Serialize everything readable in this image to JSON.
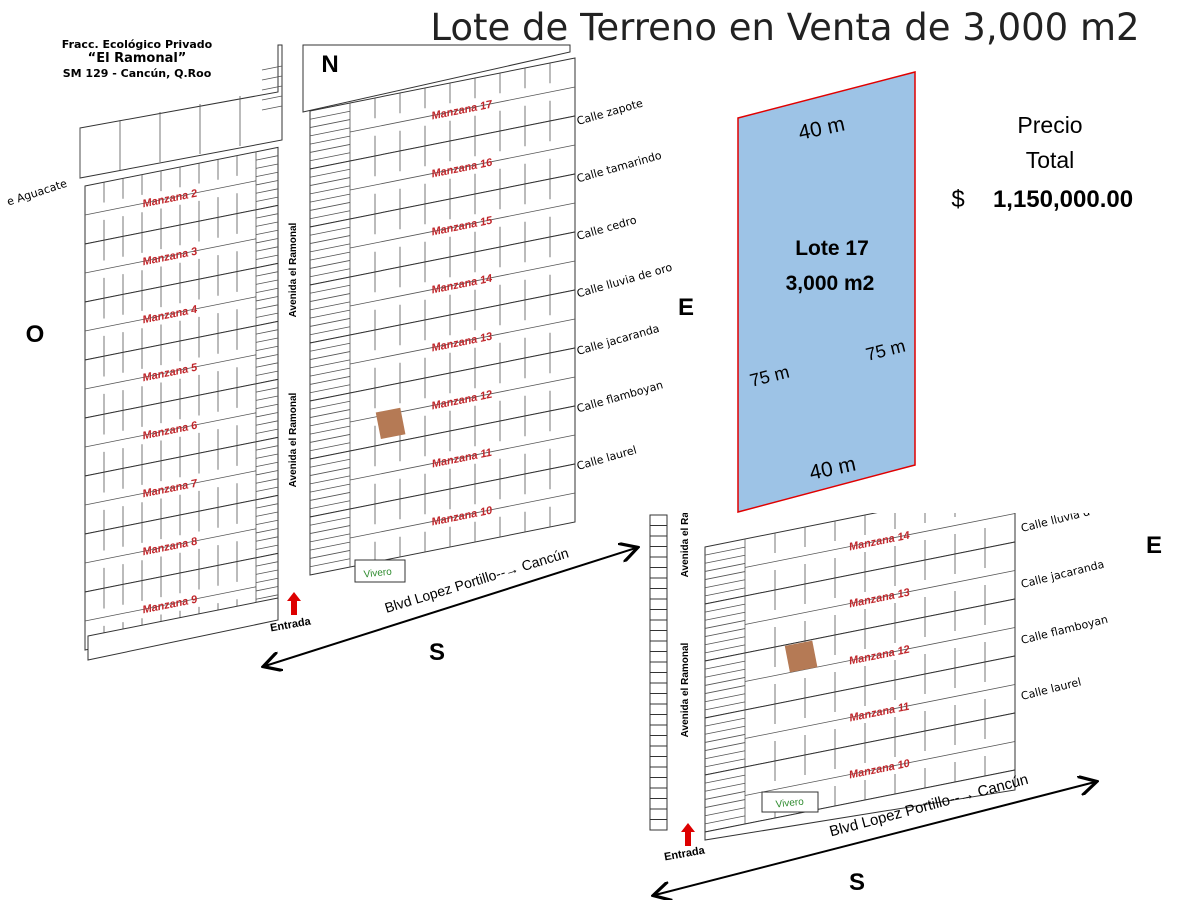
{
  "title": "Lote de Terreno en Venta de 3,000 m2",
  "header": {
    "lines": [
      "Fracc. Ecológico Privado",
      "“El Ramonal”",
      "SM 129 - Cancún, Q.Roo"
    ]
  },
  "compass": {
    "north": "N",
    "west": "O",
    "east": "E",
    "south": "S"
  },
  "map": {
    "west_blocks": [
      "Manzana 2",
      "Manzana 3",
      "Manzana 4",
      "Manzana 5",
      "Manzana 6",
      "Manzana 7",
      "Manzana 8",
      "Manzana 9"
    ],
    "east_blocks": [
      "Manzana 17",
      "Manzana 16",
      "Manzana 15",
      "Manzana 14",
      "Manzana 13",
      "Manzana 12",
      "Manzana 11",
      "Manzana 10"
    ],
    "west_street": "e Aguacate",
    "streets": [
      "Calle zapote",
      "Calle tamarindo",
      "Calle cedro",
      "Calle lluvia de oro",
      "Calle jacaranda",
      "Calle flamboyan",
      "Calle laurel"
    ],
    "avenue": "Avenida el Ramonal",
    "nursery": "Vivero",
    "entrance": "Entrada",
    "boulevard": "Blvd Lopez Portillo--→ Cancún"
  },
  "lot": {
    "name": "Lote  17",
    "area": "3,000 m2",
    "top": "40 m",
    "bottom": "40 m",
    "left": "75 m",
    "right": "75 m"
  },
  "price": {
    "label1": "Precio",
    "label2": "Total",
    "currency": "$",
    "amount": "1,150,000.00"
  },
  "detail_map": {
    "blocks": [
      "Manzana 14",
      "Manzana 13",
      "Manzana 12",
      "Manzana 11",
      "Manzana 10"
    ],
    "streets": [
      "Calle lluvia d",
      "Calle jacaranda",
      "Calle flamboyan",
      "Calle laurel"
    ],
    "avenue": "Avenida el Ramonal",
    "nursery": "Vivero",
    "entrance": "Entrada",
    "boulevard": "Blvd Lopez Portillo--→ Cancún",
    "east": "E",
    "south": "S"
  }
}
